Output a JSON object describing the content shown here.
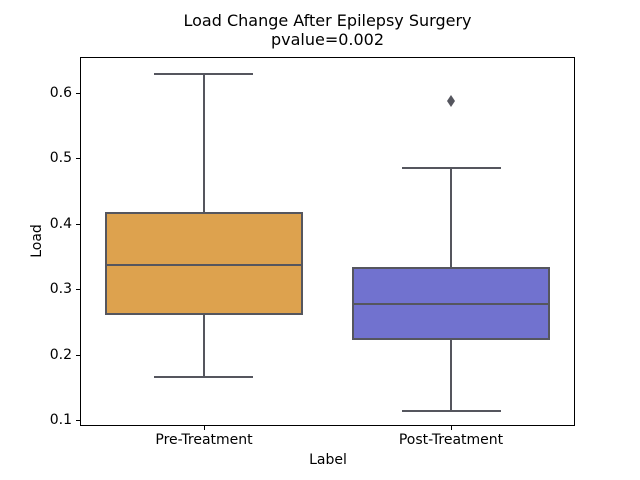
{
  "window": {
    "background": "#ffffff"
  },
  "chart_data": {
    "type": "boxplot",
    "title": "Load Change After Epilepsy Surgery",
    "subtitle": "pvalue=0.002",
    "xlabel": "Label",
    "ylabel": "Load",
    "categories": [
      "Pre-Treatment",
      "Post-Treatment"
    ],
    "ylim": [
      0.091,
      0.655
    ],
    "yticks": [
      0.1,
      0.2,
      0.3,
      0.4,
      0.5,
      0.6
    ],
    "ytick_labels": [
      "0.1",
      "0.2",
      "0.3",
      "0.4",
      "0.5",
      "0.6"
    ],
    "grid": false,
    "legend": "none",
    "box_width_fraction": 0.8,
    "line_color": "#55565e",
    "spine_color": "#000000",
    "series": [
      {
        "name": "Pre-Treatment",
        "fill_color": "#dda24e",
        "whisker_low": 0.166,
        "q1": 0.26,
        "median": 0.337,
        "q3": 0.418,
        "whisker_high": 0.629,
        "outliers": []
      },
      {
        "name": "Post-Treatment",
        "fill_color": "#7172cf",
        "whisker_low": 0.114,
        "q1": 0.223,
        "median": 0.278,
        "q3": 0.334,
        "whisker_high": 0.486,
        "outliers": [
          0.588
        ]
      }
    ]
  }
}
